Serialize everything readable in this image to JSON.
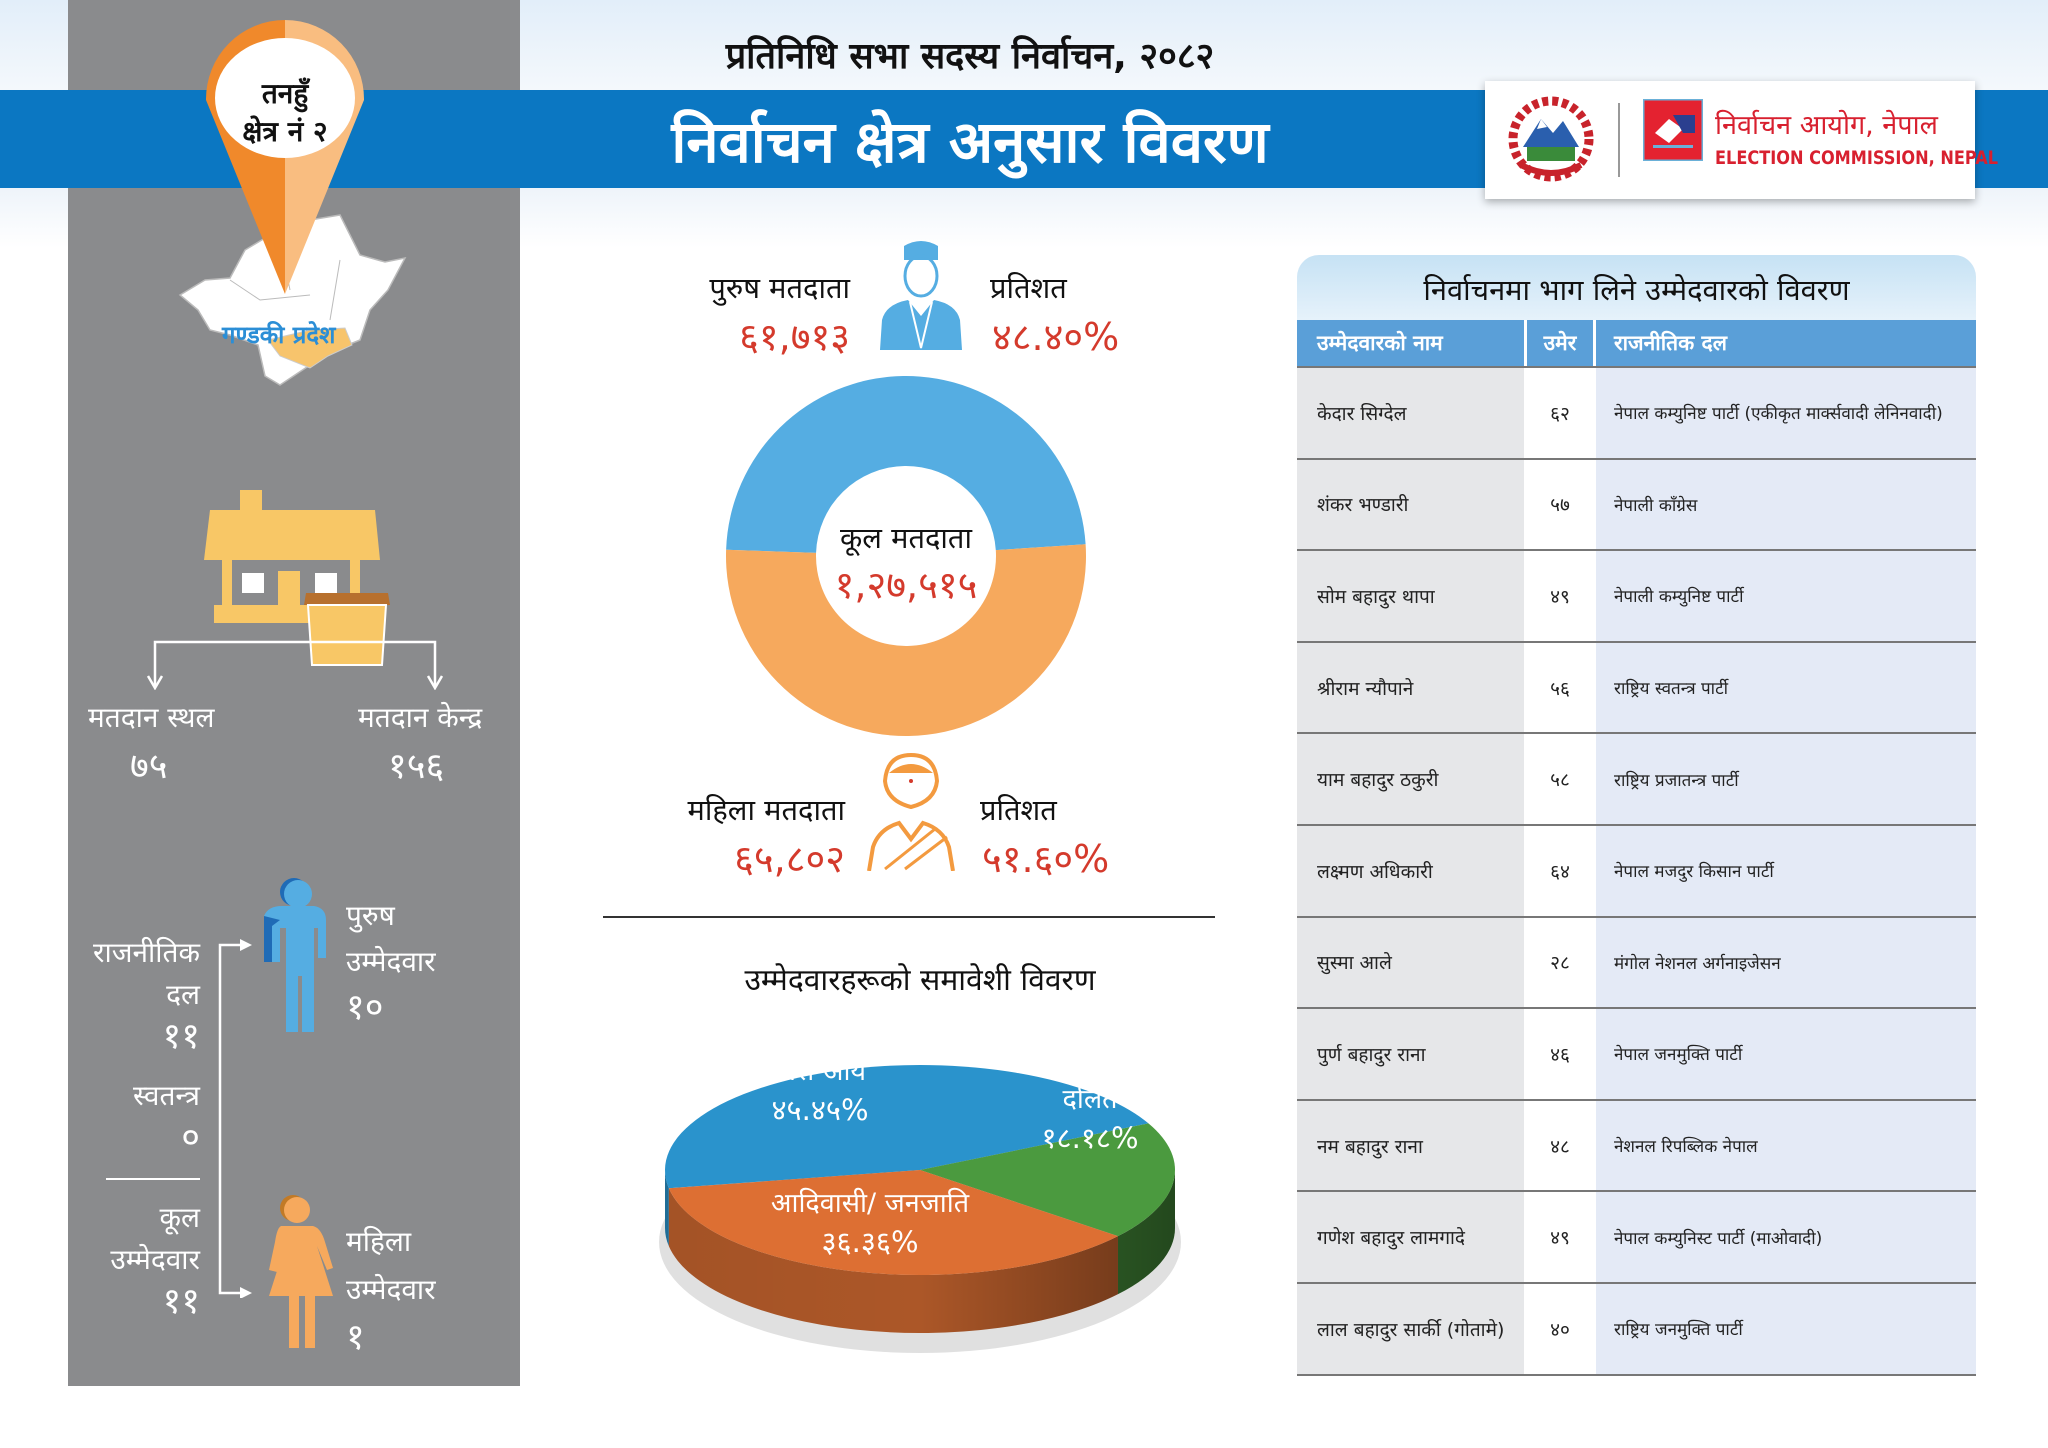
{
  "header": {
    "subtitle": "प्रतिनिधि सभा सदस्य निर्वाचन, २०८२",
    "title": "निर्वाचन क्षेत्र अनुसार विवरण",
    "logo": {
      "name_np": "निर्वाचन आयोग, नेपाल",
      "name_en": "ELECTION COMMISSION, NEPAL"
    }
  },
  "colors": {
    "brand_blue": "#0b77c2",
    "panel_grey": "#8a8b8d",
    "male_blue": "#55ade2",
    "female_orange": "#f6a95d",
    "value_red": "#d43a2c",
    "accent_red": "#d8202f"
  },
  "left": {
    "pin": {
      "line1": "तनहुँ",
      "line2": "क्षेत्र नं २"
    },
    "map_label": "गण्डकी प्रदेश",
    "polling_places": {
      "label": "मतदान स्थल",
      "value": "७५"
    },
    "polling_centers": {
      "label": "मतदान केन्द्र",
      "value": "१५६"
    },
    "parties": {
      "label1": "राजनीतिक",
      "label2": "दल",
      "value": "११"
    },
    "independent": {
      "label": "स्वतन्त्र",
      "value": "०"
    },
    "total": {
      "label1": "कूल",
      "label2": "उम्मेदवार",
      "value": "११"
    },
    "male": {
      "label1": "पुरुष",
      "label2": "उम्मेदवार",
      "value": "१०"
    },
    "female": {
      "label1": "महिला",
      "label2": "उम्मेदवार",
      "value": "१"
    }
  },
  "voters": {
    "male": {
      "label": "पुरुष मतदाता",
      "value": "६१,७१३",
      "pct_label": "प्रतिशत",
      "pct": "४८.४०%"
    },
    "female": {
      "label": "महिला मतदाता",
      "value": "६५,८०२",
      "pct_label": "प्रतिशत",
      "pct": "५१.६०%"
    },
    "total": {
      "label": "कूल मतदाता",
      "value": "१,२७,५१५"
    }
  },
  "chart_data": [
    {
      "type": "pie",
      "variant": "donut",
      "series": [
        {
          "name": "पुरुष मतदाता",
          "value": 48.4,
          "color": "#55ade2"
        },
        {
          "name": "महिला मतदाता",
          "value": 51.6,
          "color": "#f6a95d"
        }
      ]
    },
    {
      "type": "pie",
      "variant": "3d",
      "title": "उम्मेदवारहरूको समावेशी विवरण",
      "slices": [
        {
          "label": "खस आर्य",
          "value": 45.45,
          "display": "४५.४५%",
          "color": "#2a93cc"
        },
        {
          "label": "दलित",
          "value": 18.18,
          "display": "१८.१८%",
          "color": "#4b9a3f"
        },
        {
          "label": "आदिवासी/ जनजाति",
          "value": 36.36,
          "display": "३६.३६%",
          "color": "#dd6f33"
        }
      ]
    }
  ],
  "table": {
    "title": "निर्वाचनमा भाग लिने उम्मेदवारको विवरण",
    "headers": [
      "उम्मेदवारको नाम",
      "उमेर",
      "राजनीतिक दल"
    ],
    "rows": [
      [
        "केदार सिग्देल",
        "६२",
        "नेपाल कम्युनिष्ट पार्टी (एकीकृत मार्क्सवादी लेनिनवादी)"
      ],
      [
        "शंकर भण्डारी",
        "५७",
        "नेपाली काँग्रेस"
      ],
      [
        "सोम बहादुर थापा",
        "४९",
        "नेपाली कम्युनिष्ट पार्टी"
      ],
      [
        "श्रीराम न्यौपाने",
        "५६",
        "राष्ट्रिय स्वतन्त्र पार्टी"
      ],
      [
        "याम बहादुर ठकुरी",
        "५८",
        "राष्ट्रिय प्रजातन्त्र पार्टी"
      ],
      [
        "लक्ष्मण अधिकारी",
        "६४",
        "नेपाल मजदुर किसान पार्टी"
      ],
      [
        "सुस्मा आले",
        "२८",
        "मंगोल नेशनल अर्गनाइजेसन"
      ],
      [
        "पुर्ण बहादुर राना",
        "४६",
        "नेपाल जनमुक्ति पार्टी"
      ],
      [
        "नम बहादुर राना",
        "४८",
        "नेशनल रिपब्लिक नेपाल"
      ],
      [
        "गणेश बहादुर लामगादे",
        "४९",
        "नेपाल कम्युनिस्ट पार्टी (माओवादी)"
      ],
      [
        "लाल बहादुर सार्की (गोतामे)",
        "४०",
        "राष्ट्रिय जनमुक्ति पार्टी"
      ]
    ]
  }
}
